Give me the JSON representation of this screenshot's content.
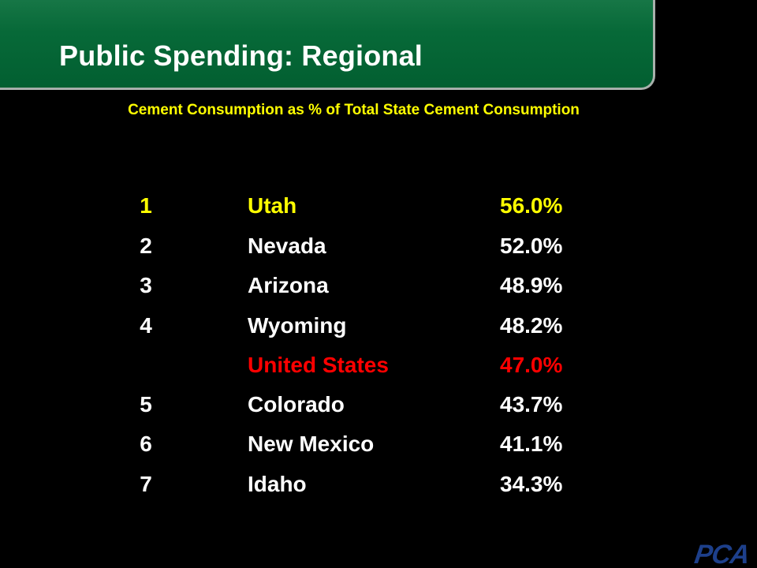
{
  "slide": {
    "title": "Public Spending: Regional",
    "subtitle": "Cement Consumption as % of Total State Cement Consumption",
    "logo_text": "PCA"
  },
  "colors": {
    "background": "#000000",
    "header_green": "#0a6f3c",
    "subtitle_yellow": "#ffff00",
    "highlight_yellow": "#ffff00",
    "highlight_red": "#ff0000",
    "text_white": "#ffffff",
    "logo_blue": "#1d3f8a"
  },
  "table": {
    "rows": [
      {
        "rank": "1",
        "state": "Utah",
        "value": "56.0%",
        "highlight": "yellow"
      },
      {
        "rank": "2",
        "state": "Nevada",
        "value": "52.0%",
        "highlight": "none"
      },
      {
        "rank": "3",
        "state": "Arizona",
        "value": "48.9%",
        "highlight": "none"
      },
      {
        "rank": "4",
        "state": "Wyoming",
        "value": "48.2%",
        "highlight": "none"
      },
      {
        "rank": "",
        "state": "United States",
        "value": "47.0%",
        "highlight": "red"
      },
      {
        "rank": "5",
        "state": "Colorado",
        "value": "43.7%",
        "highlight": "none"
      },
      {
        "rank": "6",
        "state": "New Mexico",
        "value": "41.1%",
        "highlight": "none"
      },
      {
        "rank": "7",
        "state": "Idaho",
        "value": "34.3%",
        "highlight": "none"
      }
    ]
  }
}
